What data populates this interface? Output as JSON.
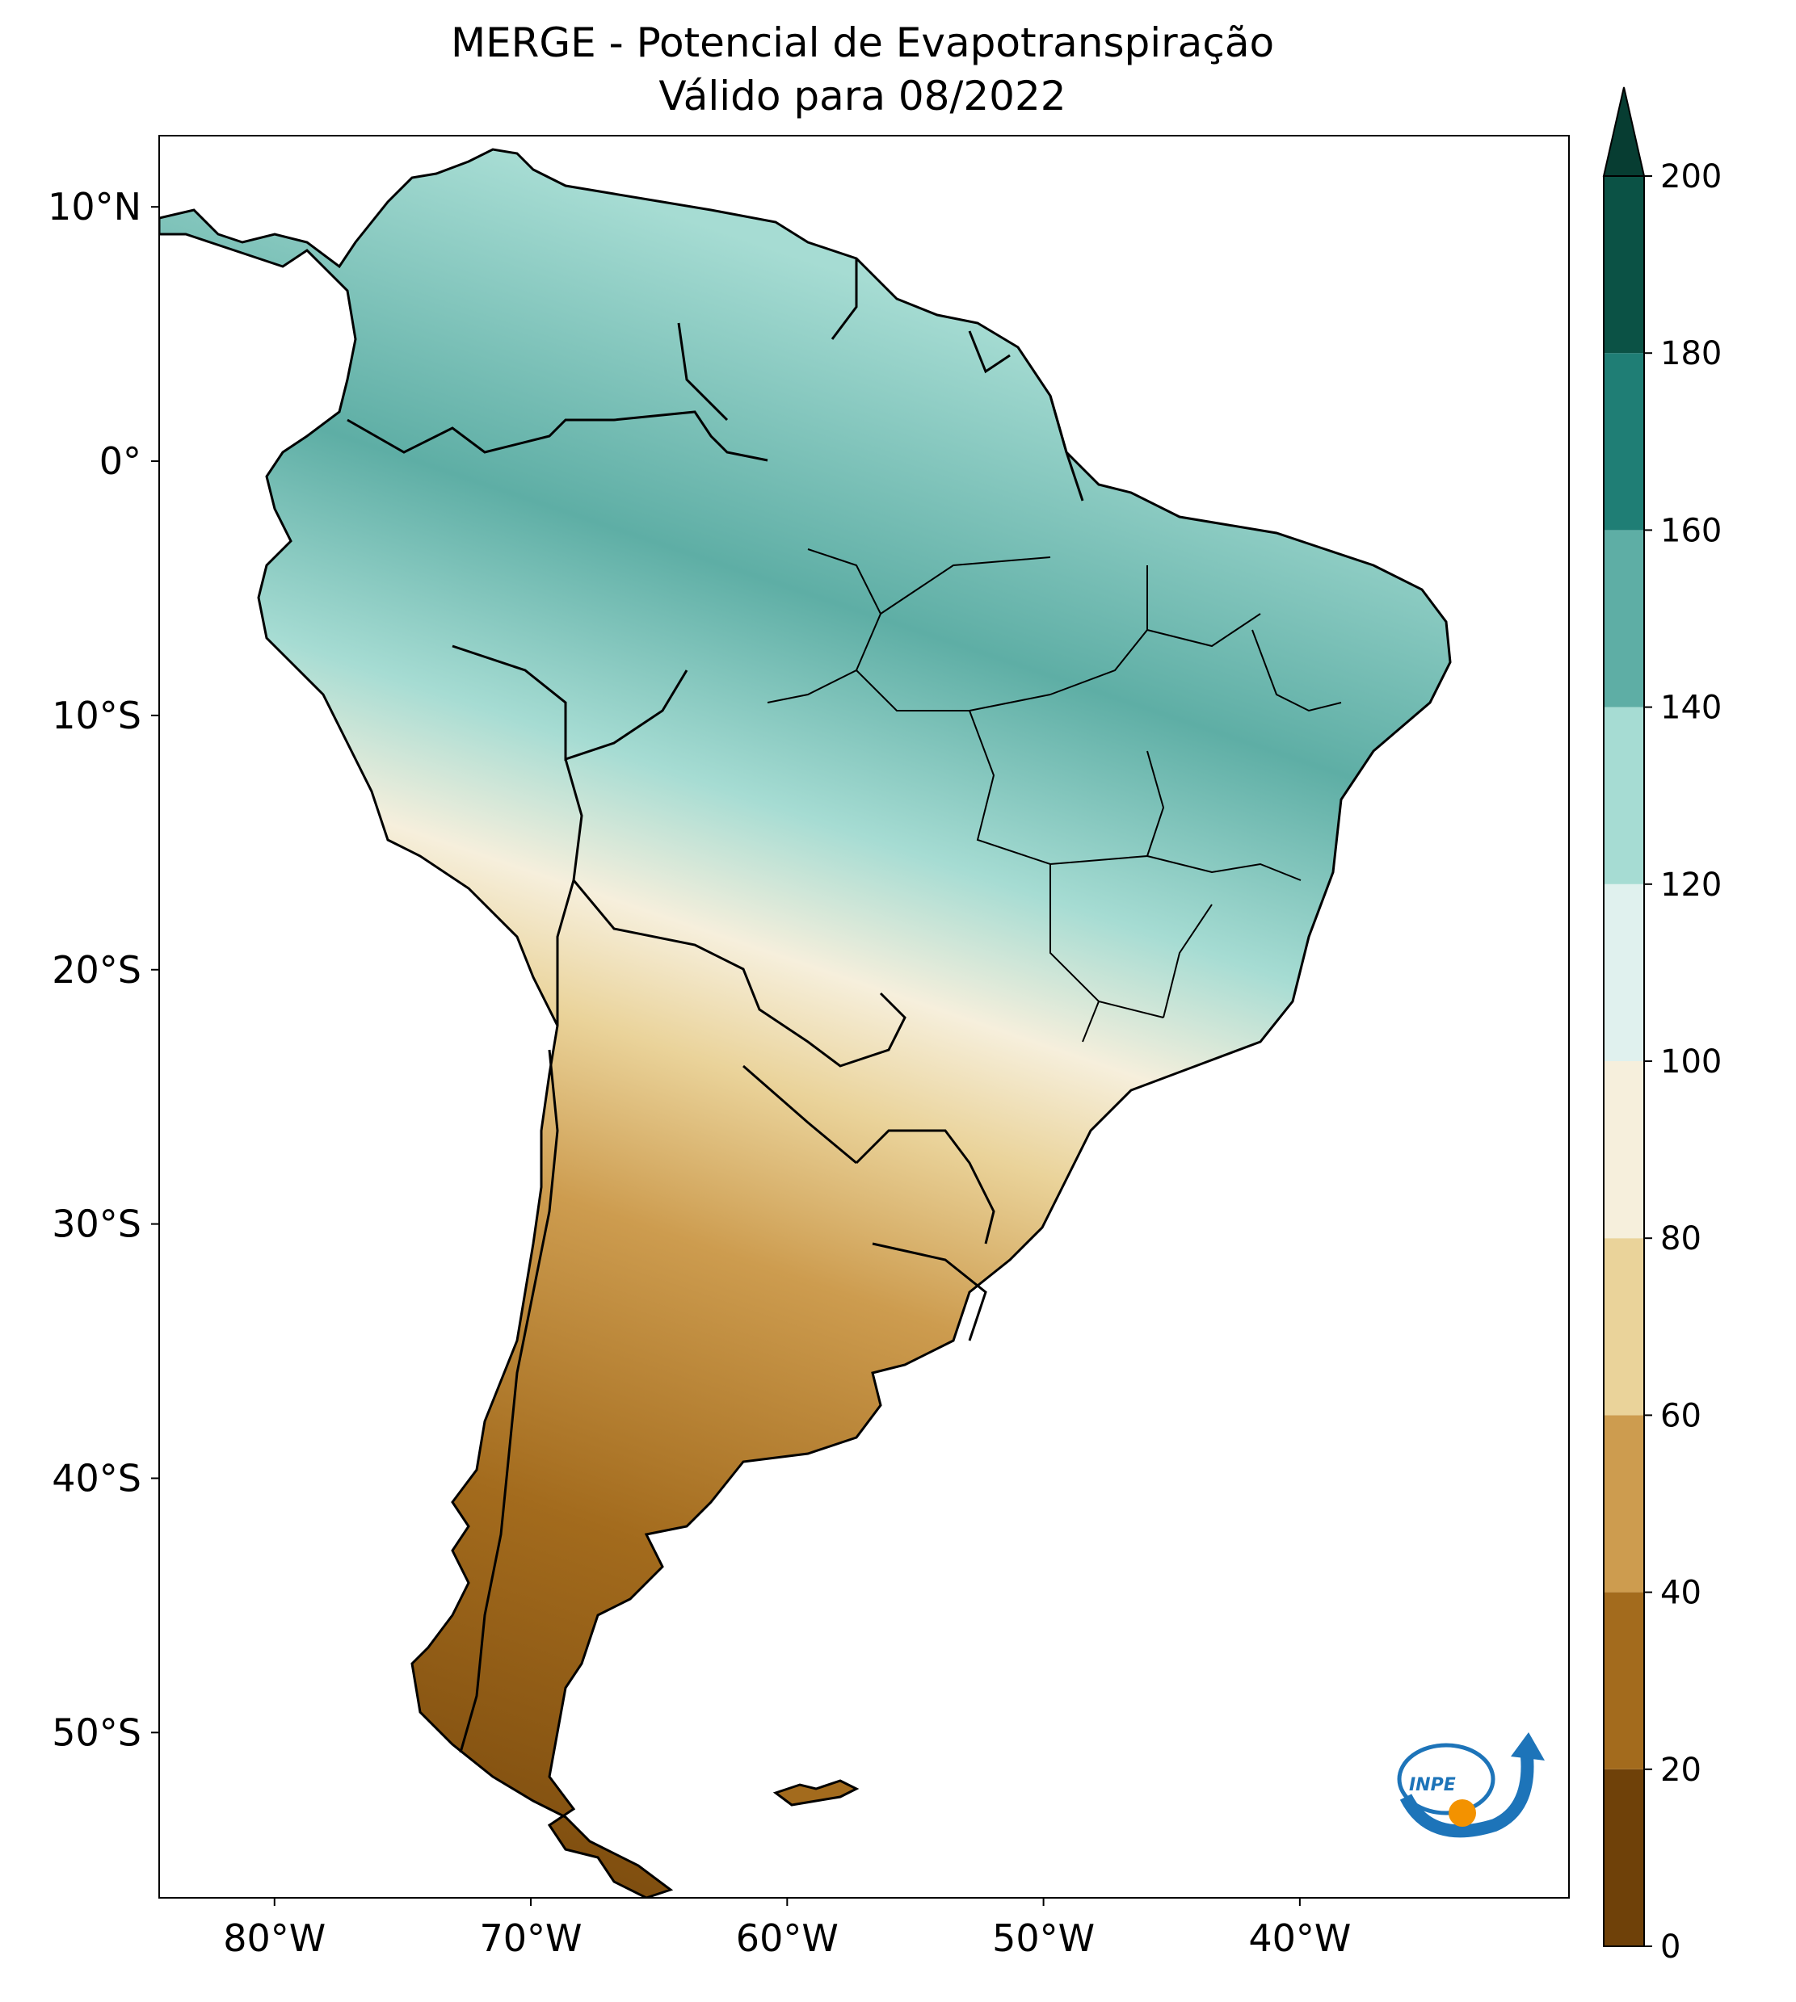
{
  "title": {
    "line1": "MERGE - Potencial de Evapotranspiração",
    "line2": "Válido para 08/2022"
  },
  "map": {
    "lat_labels": [
      {
        "lat": 10,
        "label": "10°N"
      },
      {
        "lat": 0,
        "label": "0°"
      },
      {
        "lat": -10,
        "label": "10°S"
      },
      {
        "lat": -20,
        "label": "20°S"
      },
      {
        "lat": -30,
        "label": "30°S"
      },
      {
        "lat": -40,
        "label": "40°S"
      },
      {
        "lat": -50,
        "label": "50°S"
      }
    ],
    "lon_labels": [
      {
        "lon": -80,
        "label": "80°W"
      },
      {
        "lon": -70,
        "label": "70°W"
      },
      {
        "lon": -60,
        "label": "60°W"
      },
      {
        "lon": -50,
        "label": "50°W"
      },
      {
        "lon": -40,
        "label": "40°W"
      }
    ],
    "extent": {
      "lon_min": -84.5,
      "lon_max": -29.5,
      "lat_min": -56.5,
      "lat_max": 12.8
    }
  },
  "colorbar": {
    "levels": [
      0,
      20,
      40,
      60,
      80,
      100,
      120,
      140,
      160,
      180,
      200
    ],
    "colors": [
      "#6f4109",
      "#a36b1d",
      "#cd9c4f",
      "#ead39a",
      "#f6efdc",
      "#e0f1ee",
      "#a6dcd3",
      "#5eaea5",
      "#1f7e75",
      "#0b5245"
    ],
    "extend_color": "#073d32",
    "ticks": [
      "0",
      "20",
      "40",
      "60",
      "80",
      "100",
      "120",
      "140",
      "160",
      "180",
      "200"
    ]
  },
  "logo": {
    "text": "INPE",
    "blue": "#1d74b9",
    "orange": "#f39200"
  }
}
